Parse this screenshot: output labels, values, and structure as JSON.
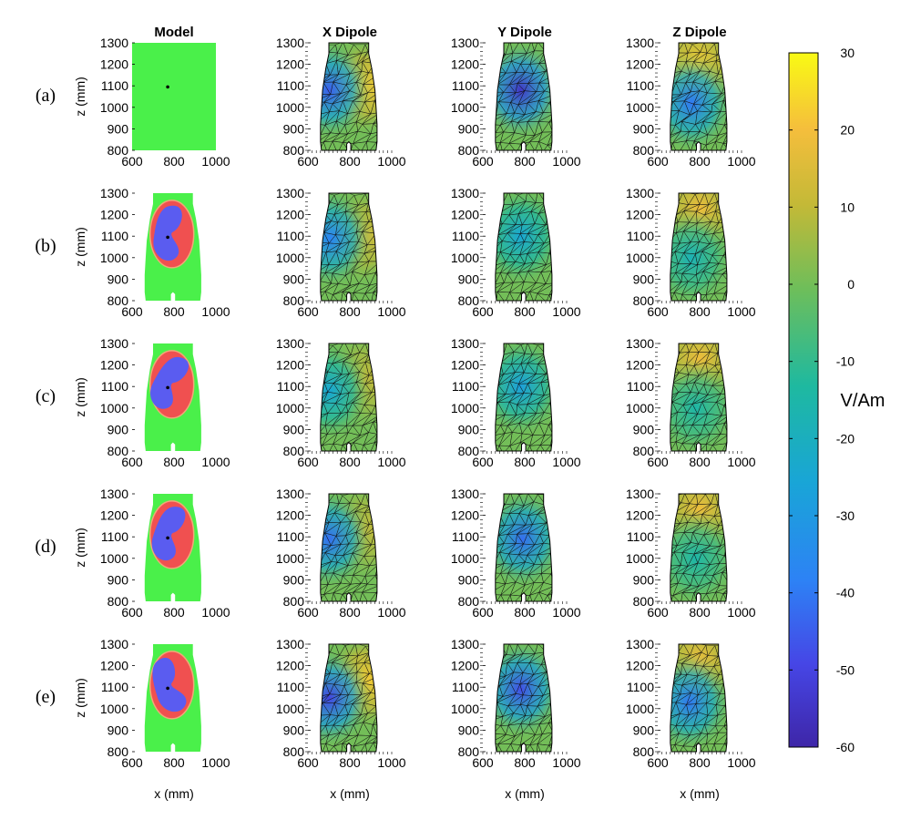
{
  "chart_data": {
    "type": "heatmap",
    "column_titles": [
      "Model",
      "X Dipole",
      "Y Dipole",
      "Z Dipole"
    ],
    "row_labels": [
      "(a)",
      "(b)",
      "(c)",
      "(d)",
      "(e)"
    ],
    "xlabel": "x (mm)",
    "ylabel": "z (mm)",
    "xlim": [
      600,
      1000
    ],
    "ylim": [
      800,
      1300
    ],
    "x_ticks": [
      600,
      800,
      1000
    ],
    "y_ticks": [
      800,
      900,
      1000,
      1100,
      1200,
      1300
    ],
    "colorbar": {
      "label": "V/Am",
      "range": [
        -60,
        30
      ],
      "ticks": [
        30,
        20,
        10,
        0,
        -10,
        -20,
        -30,
        -40,
        -50,
        -60
      ]
    },
    "dipole_position_mm": {
      "x": 770,
      "z": 1095
    },
    "model_colors": {
      "background": "#4af04a",
      "uterus": "#f05050",
      "fetus": "#5a5cf0",
      "outline": "#f0a878"
    },
    "field_maps": {
      "X Dipole": [
        {
          "hot": [
            870,
            1100,
            22
          ],
          "cold": [
            700,
            1080,
            -45
          ]
        },
        {
          "hot": [
            870,
            1100,
            15
          ],
          "cold": [
            705,
            1090,
            -38
          ]
        },
        {
          "hot": [
            870,
            1130,
            12
          ],
          "cold": [
            700,
            1080,
            -25
          ]
        },
        {
          "hot": [
            870,
            1130,
            12
          ],
          "cold": [
            700,
            1090,
            -42
          ]
        },
        {
          "hot": [
            880,
            1130,
            22
          ],
          "cold": [
            700,
            1050,
            -50
          ]
        }
      ],
      "Y Dipole": [
        {
          "cold": [
            780,
            1080,
            -55
          ]
        },
        {
          "cold": [
            780,
            1100,
            -25
          ]
        },
        {
          "cold": [
            780,
            1100,
            -28
          ]
        },
        {
          "cold": [
            790,
            1090,
            -42
          ]
        },
        {
          "cold": [
            780,
            1090,
            -48
          ]
        }
      ],
      "Z Dipole": [
        {
          "hot": [
            790,
            1200,
            22
          ],
          "cold": [
            760,
            1020,
            -40
          ]
        },
        {
          "hot": [
            800,
            1220,
            20
          ],
          "cold": [
            760,
            1000,
            -18
          ]
        },
        {
          "hot": [
            800,
            1220,
            20
          ],
          "cold": [
            780,
            1000,
            -15
          ]
        },
        {
          "hot": [
            800,
            1220,
            20
          ],
          "cold": [
            780,
            1000,
            -15
          ]
        },
        {
          "hot": [
            800,
            1220,
            20
          ],
          "cold": [
            750,
            1030,
            -40
          ]
        }
      ]
    }
  }
}
